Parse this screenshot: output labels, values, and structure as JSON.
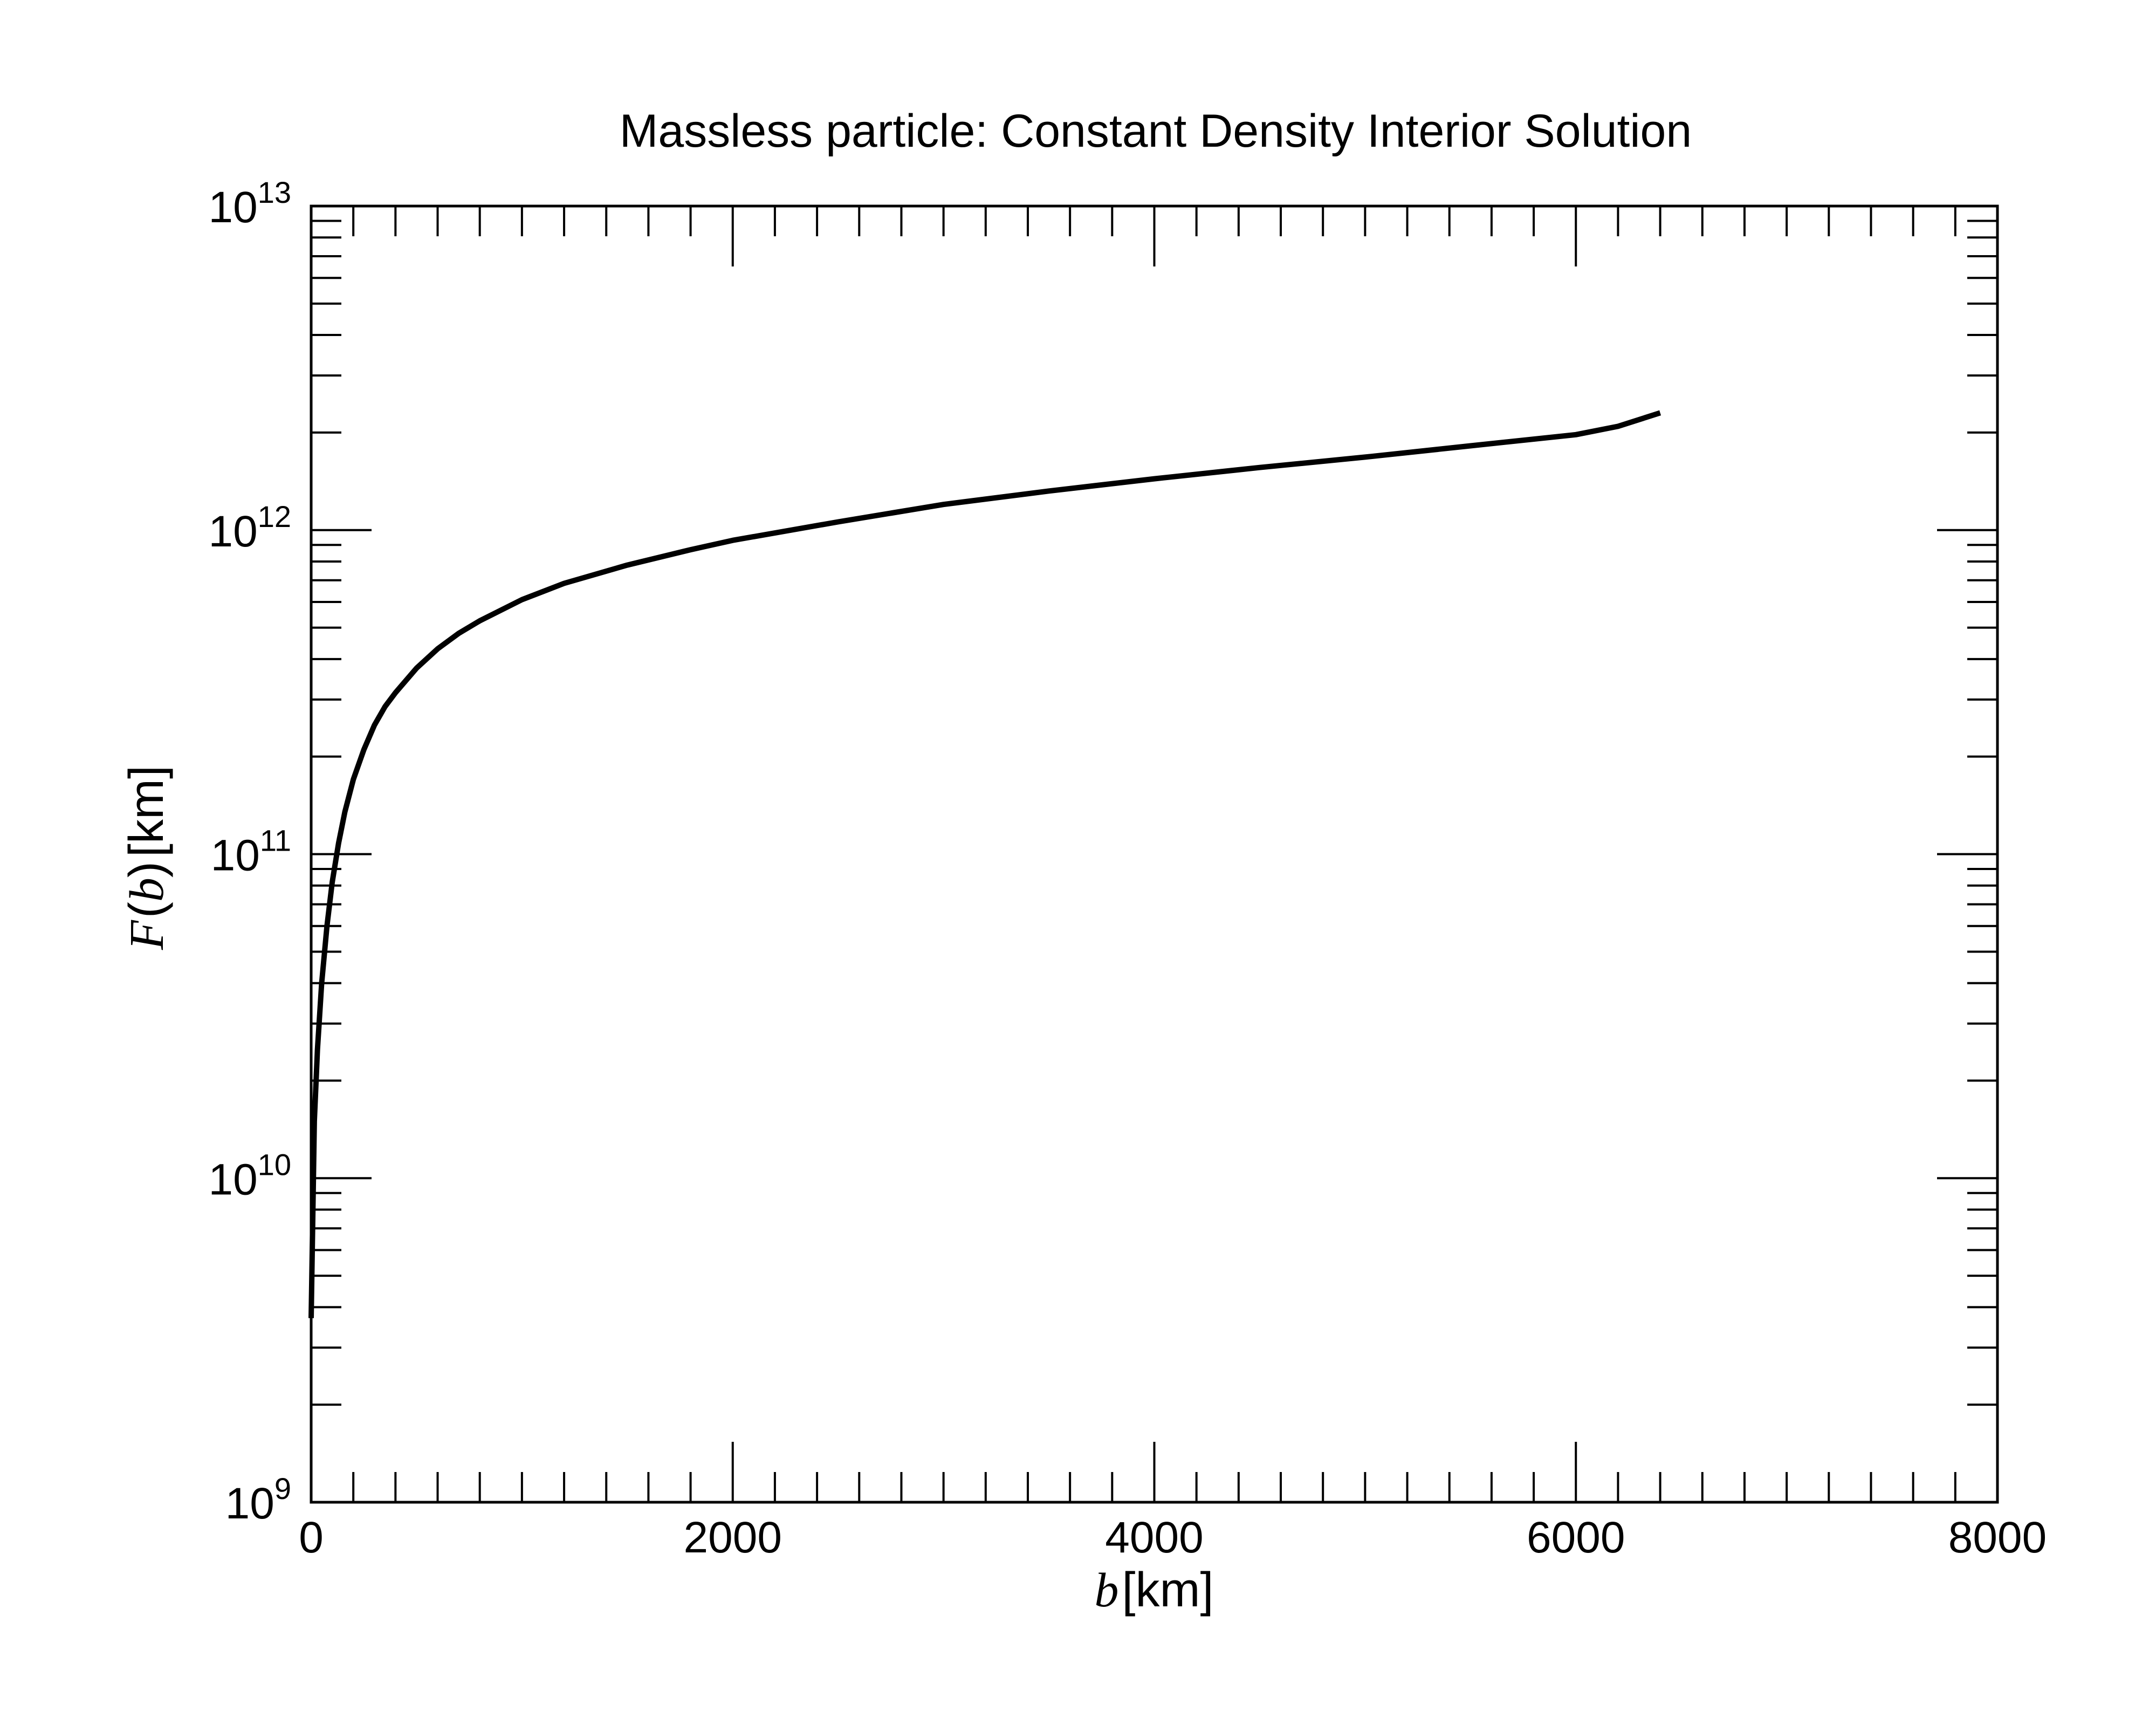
{
  "chart_data": {
    "type": "line",
    "title": "Massless particle: Constant Density Interior Solution",
    "xlabel": {
      "var": "b",
      "unit": "[km]"
    },
    "ylabel": {
      "fn": "F",
      "arg": "b",
      "unit": "[km]"
    },
    "xlim": [
      0,
      8000
    ],
    "ylim": [
      1000000000.0,
      10000000000000.0
    ],
    "yscale": "log",
    "grid": false,
    "x_ticks": [
      "0",
      "2000",
      "4000",
      "6000",
      "8000"
    ],
    "y_ticks": [
      {
        "base": "10",
        "exp": "9"
      },
      {
        "base": "10",
        "exp": "10"
      },
      {
        "base": "10",
        "exp": "11"
      },
      {
        "base": "10",
        "exp": "12"
      },
      {
        "base": "10",
        "exp": "13"
      }
    ],
    "series": [
      {
        "color": "#000000",
        "x": [
          0,
          15,
          30,
          50,
          75,
          100,
          130,
          160,
          200,
          250,
          300,
          350,
          400,
          500,
          600,
          700,
          800,
          1000,
          1200,
          1500,
          1800,
          2000,
          2500,
          3000,
          3500,
          4000,
          4500,
          5000,
          5500,
          6000,
          6200,
          6400
        ],
        "y": [
          3700000000.0,
          15000000000.0,
          25000000000.0,
          40000000000.0,
          60000000000.0,
          82000000000.0,
          108000000000.0,
          135000000000.0,
          170000000000.0,
          210000000000.0,
          250000000000.0,
          285000000000.0,
          315000000000.0,
          375000000000.0,
          430000000000.0,
          480000000000.0,
          525000000000.0,
          610000000000.0,
          685000000000.0,
          780000000000.0,
          870000000000.0,
          930000000000.0,
          1060000000000.0,
          1200000000000.0,
          1320000000000.0,
          1440000000000.0,
          1560000000000.0,
          1680000000000.0,
          1820000000000.0,
          1970000000000.0,
          2090000000000.0,
          2300000000000.0
        ]
      }
    ]
  }
}
